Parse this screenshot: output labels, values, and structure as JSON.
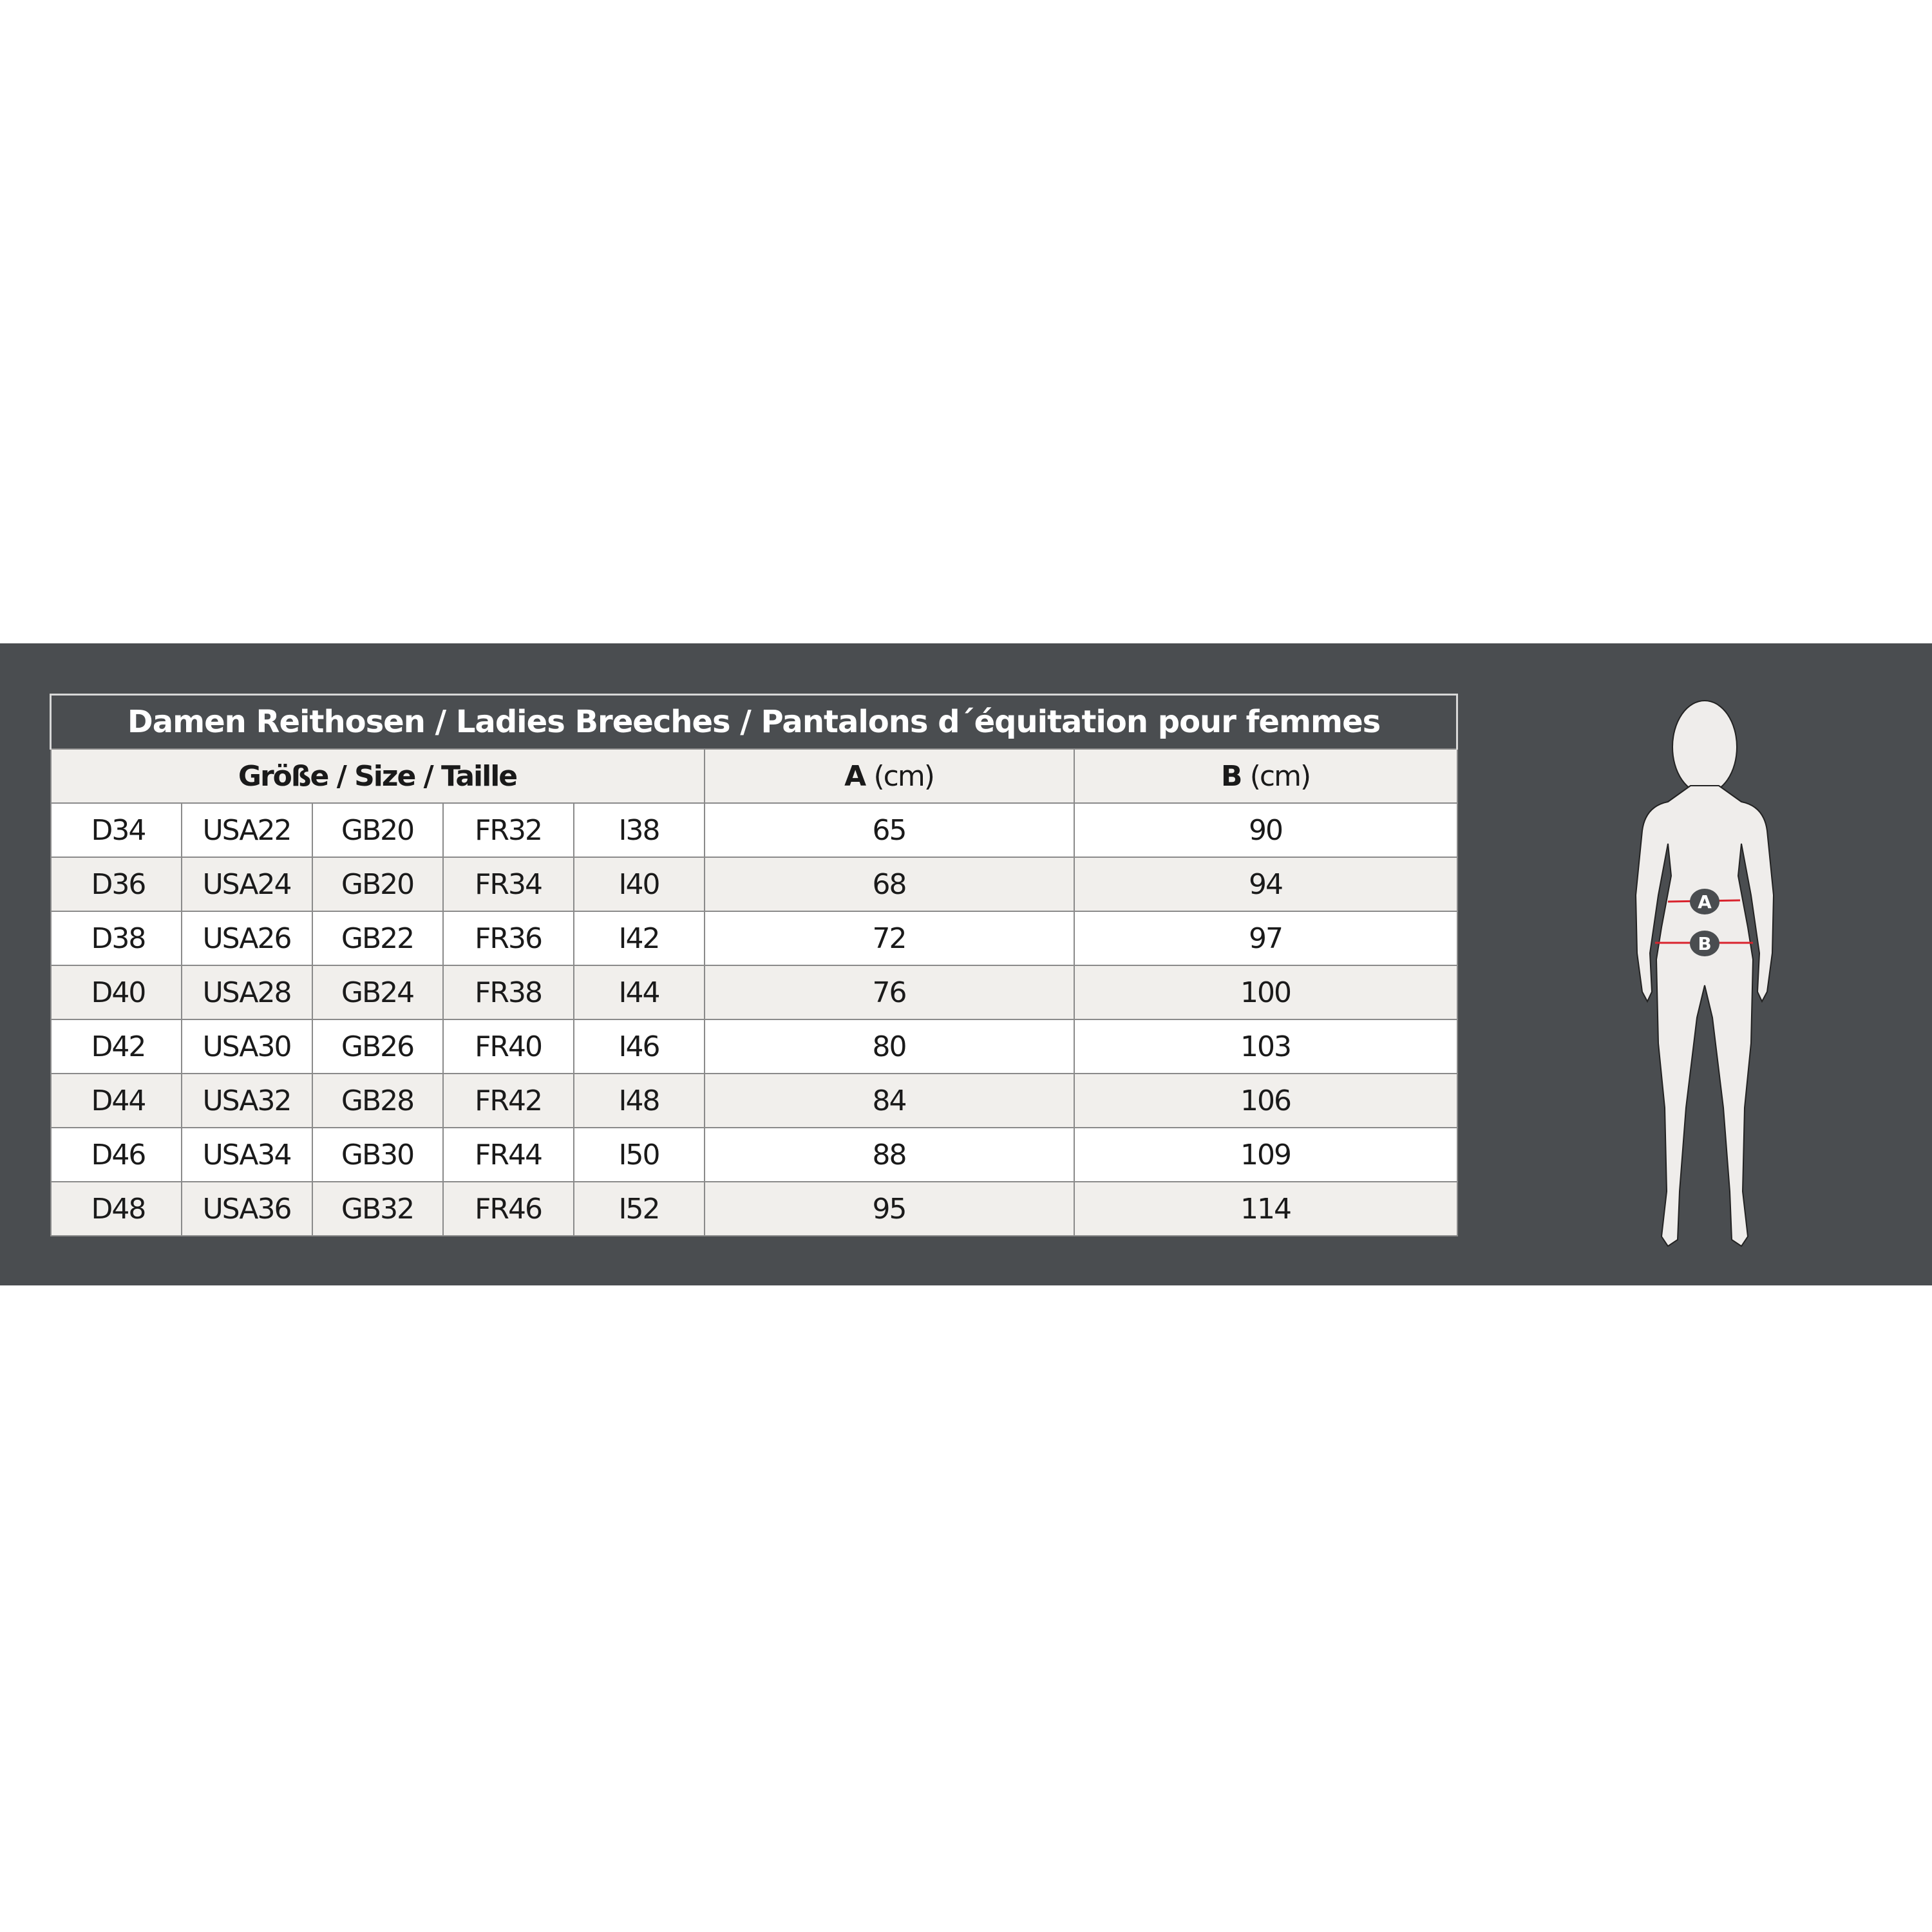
{
  "title": "Damen Reithosen / Ladies Breeches / Pantalons d´équitation pour femmes",
  "headers": {
    "size": "Größe / Size / Taille",
    "a_letter": "A",
    "a_unit": "(cm)",
    "b_letter": "B",
    "b_unit": "(cm)"
  },
  "rows": [
    [
      "D34",
      "USA22",
      "GB20",
      "FR32",
      "I38",
      "65",
      "90"
    ],
    [
      "D36",
      "USA24",
      "GB20",
      "FR34",
      "I40",
      "68",
      "94"
    ],
    [
      "D38",
      "USA26",
      "GB22",
      "FR36",
      "I42",
      "72",
      "97"
    ],
    [
      "D40",
      "USA28",
      "GB24",
      "FR38",
      "I44",
      "76",
      "100"
    ],
    [
      "D42",
      "USA30",
      "GB26",
      "FR40",
      "I46",
      "80",
      "103"
    ],
    [
      "D44",
      "USA32",
      "GB28",
      "FR42",
      "I48",
      "84",
      "106"
    ],
    [
      "D46",
      "USA34",
      "GB30",
      "FR44",
      "I50",
      "88",
      "109"
    ],
    [
      "D48",
      "USA36",
      "GB32",
      "FR46",
      "I52",
      "95",
      "114"
    ]
  ],
  "figure": {
    "marker_a": "A",
    "marker_b": "B",
    "line_color": "#d9232d"
  },
  "colors": {
    "band": "#4a4d50",
    "alt_row": "#f1efec"
  }
}
